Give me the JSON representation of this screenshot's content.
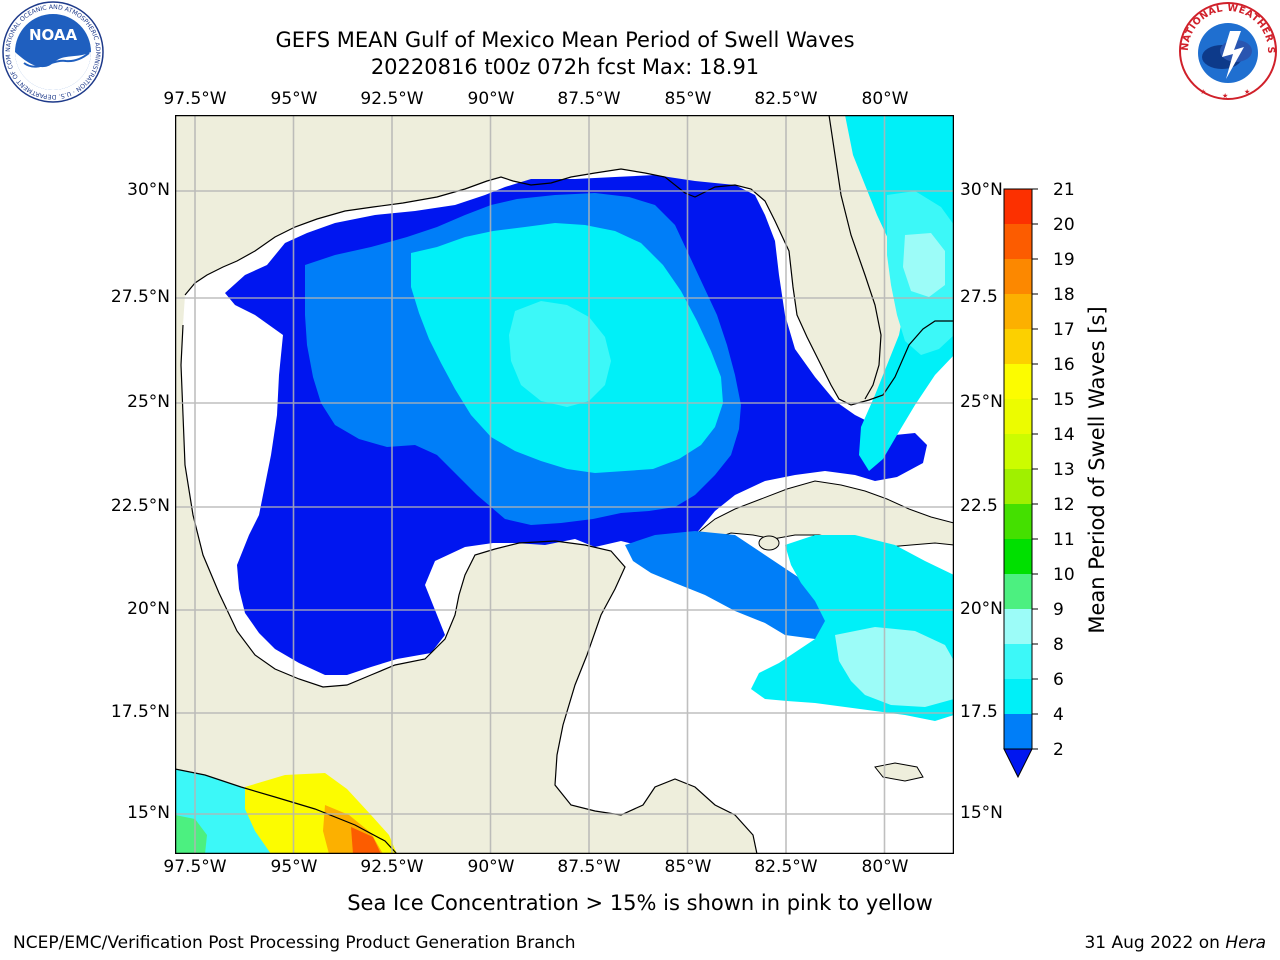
{
  "title_line1": "GEFS MEAN Gulf of Mexico Mean Period of Swell Waves",
  "title_line2": "20220816 t00z 072h fcst   Max: 18.91",
  "logos": {
    "left": {
      "icon": "noaa-logo",
      "text": "NOAA",
      "ring_text": "NATIONAL OCEANIC AND ATMOSPHERIC ADMINISTRATION · U.S. DEPARTMENT OF COMMERCE"
    },
    "right": {
      "icon": "national-weather-service-logo",
      "ring_text": "NATIONAL WEATHER SERVICE"
    }
  },
  "lon_ticks": [
    "97.5°W",
    "95°W",
    "92.5°W",
    "90°W",
    "87.5°W",
    "85°W",
    "82.5°W",
    "80°W"
  ],
  "lat_ticks_left": [
    "30°N",
    "27.5°N",
    "25°N",
    "22.5°N",
    "20°N",
    "17.5°N",
    "15°N"
  ],
  "lat_ticks_right": [
    "30°N",
    "27.5",
    "25°N",
    "22.5",
    "20°N",
    "17.5",
    "15°N"
  ],
  "map": {
    "lon_range": [
      -98,
      -78.3
    ],
    "lat_range": [
      14,
      31.8
    ],
    "land_color": "#eeeedc",
    "no_data_color": "#ffffff",
    "grid_color": "#b4b4b4"
  },
  "colorbar": {
    "title": "Mean Period of Swell Waves [s]",
    "tick_labels": [
      "2",
      "4",
      "6",
      "8",
      "9",
      "10",
      "11",
      "12",
      "13",
      "14",
      "15",
      "16",
      "17",
      "18",
      "19",
      "20",
      "21"
    ],
    "colors": [
      "#0016f0",
      "#007ef8",
      "#00f0f8",
      "#3cf8f8",
      "#9cfcf8",
      "#4cf080",
      "#00e000",
      "#44e000",
      "#a0f000",
      "#ccfc00",
      "#ecfc00",
      "#fcfc00",
      "#fcd000",
      "#fcb000",
      "#fc8800",
      "#fc5c00",
      "#fc3000",
      "#fc0000"
    ],
    "extend": "min"
  },
  "note": "Sea Ice Concentration > 15% is shown in pink to yellow",
  "footer_left": "NCEP/EMC/Verification Post Processing Product Generation Branch",
  "footer_right_date": "31 Aug 2022 on",
  "footer_right_machine": "Hera"
}
